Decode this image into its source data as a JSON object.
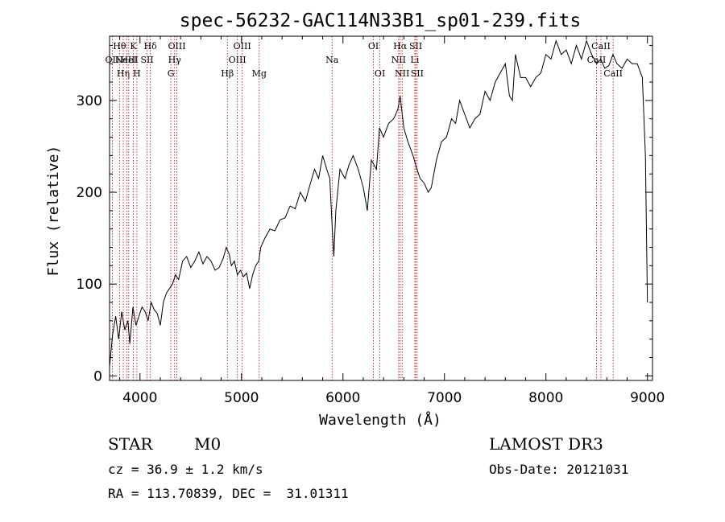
{
  "chart_data": {
    "type": "line",
    "title": "spec-56232-GAC114N33B1_sp01-239.fits",
    "xlabel": "Wavelength (Å)",
    "ylabel": "Flux (relative)",
    "xlim": [
      3700,
      9050
    ],
    "ylim": [
      -5,
      370
    ],
    "xticks": [
      4000,
      5000,
      6000,
      7000,
      8000,
      9000
    ],
    "yticks": [
      0,
      100,
      200,
      300
    ],
    "grid": false,
    "series": [
      {
        "x": [
          3700,
          3730,
          3760,
          3790,
          3820,
          3850,
          3880,
          3900,
          3930,
          3960,
          3990,
          4020,
          4050,
          4080,
          4110,
          4140,
          4170,
          4200,
          4230,
          4260,
          4290,
          4320,
          4350,
          4380,
          4420,
          4460,
          4500,
          4540,
          4580,
          4620,
          4660,
          4700,
          4740,
          4780,
          4820,
          4850,
          4880,
          4900,
          4930,
          4960,
          4990,
          5020,
          5050,
          5080,
          5110,
          5140,
          5170,
          5190,
          5230,
          5280,
          5330,
          5380,
          5430,
          5480,
          5530,
          5580,
          5630,
          5680,
          5720,
          5760,
          5800,
          5840,
          5870,
          5895,
          5910,
          5930,
          5970,
          6020,
          6060,
          6100,
          6150,
          6200,
          6240,
          6280,
          6330,
          6360,
          6400,
          6450,
          6500,
          6540,
          6563,
          6600,
          6640,
          6690,
          6730,
          6760,
          6800,
          6840,
          6870,
          6920,
          6970,
          7020,
          7070,
          7110,
          7150,
          7200,
          7250,
          7300,
          7350,
          7400,
          7450,
          7500,
          7550,
          7600,
          7640,
          7670,
          7700,
          7750,
          7800,
          7850,
          7900,
          7950,
          8000,
          8050,
          8100,
          8150,
          8200,
          8250,
          8300,
          8350,
          8400,
          8450,
          8500,
          8540,
          8580,
          8620,
          8660,
          8700,
          8750,
          8800,
          8850,
          8900,
          8950,
          8980,
          9000
        ],
        "values": [
          10,
          45,
          65,
          40,
          70,
          50,
          60,
          35,
          75,
          55,
          65,
          75,
          70,
          60,
          80,
          72,
          68,
          55,
          80,
          90,
          95,
          100,
          110,
          105,
          125,
          130,
          118,
          125,
          135,
          122,
          130,
          125,
          115,
          118,
          128,
          140,
          132,
          120,
          125,
          110,
          115,
          108,
          112,
          95,
          110,
          120,
          125,
          140,
          150,
          160,
          158,
          170,
          172,
          185,
          182,
          200,
          190,
          210,
          225,
          215,
          240,
          225,
          215,
          160,
          130,
          180,
          225,
          215,
          230,
          240,
          225,
          205,
          180,
          235,
          225,
          270,
          260,
          275,
          280,
          290,
          305,
          270,
          255,
          240,
          225,
          215,
          210,
          200,
          205,
          235,
          255,
          260,
          280,
          275,
          300,
          285,
          270,
          280,
          285,
          310,
          300,
          320,
          330,
          340,
          305,
          300,
          350,
          325,
          325,
          315,
          325,
          330,
          350,
          345,
          365,
          350,
          355,
          340,
          360,
          345,
          365,
          350,
          340,
          345,
          335,
          338,
          350,
          340,
          335,
          345,
          340,
          340,
          325,
          240,
          80
        ]
      }
    ],
    "lines": [
      {
        "x": 3727,
        "label": "OII",
        "row": 2
      },
      {
        "x": 3798,
        "label": "Hθ",
        "row": 1
      },
      {
        "x": 3835,
        "label": "Hη",
        "row": 3
      },
      {
        "x": 3869,
        "label": "NeIII",
        "row": 2
      },
      {
        "x": 3889,
        "label": "HeI",
        "row": 2
      },
      {
        "x": 3934,
        "label": "K",
        "row": 1
      },
      {
        "x": 3969,
        "label": "H",
        "row": 3
      },
      {
        "x": 4070,
        "label": "SII",
        "row": 2
      },
      {
        "x": 4102,
        "label": "Hδ",
        "row": 1
      },
      {
        "x": 4304,
        "label": "G",
        "row": 3
      },
      {
        "x": 4341,
        "label": "Hγ",
        "row": 2
      },
      {
        "x": 4363,
        "label": "OIII",
        "row": 1
      },
      {
        "x": 4861,
        "label": "Hβ",
        "row": 3
      },
      {
        "x": 4959,
        "label": "OIII",
        "row": 2
      },
      {
        "x": 5007,
        "label": "OIII",
        "row": 1
      },
      {
        "x": 5175,
        "label": "Mg",
        "row": 3
      },
      {
        "x": 5893,
        "label": "Na",
        "row": 2
      },
      {
        "x": 6300,
        "label": "OI",
        "row": 1
      },
      {
        "x": 6364,
        "label": "OI",
        "row": 3
      },
      {
        "x": 6548,
        "label": "NII",
        "row": 2
      },
      {
        "x": 6563,
        "label": "Hα",
        "row": 1
      },
      {
        "x": 6583,
        "label": "NII",
        "row": 3
      },
      {
        "x": 6708,
        "label": "Li",
        "row": 2
      },
      {
        "x": 6717,
        "label": "SII",
        "row": 1
      },
      {
        "x": 6731,
        "label": "SII",
        "row": 3
      },
      {
        "x": 8498,
        "label": "CaII",
        "row": 2
      },
      {
        "x": 8542,
        "label": "CaII",
        "row": 1
      },
      {
        "x": 8662,
        "label": "CaII",
        "row": 3
      }
    ]
  },
  "info": {
    "object_type": "STAR",
    "subclass": "M0",
    "survey": "LAMOST DR3",
    "cz": "cz = 36.9 ± 1.2 km/s",
    "obs_date": "Obs-Date: 20121031",
    "coords": "RA = 113.70839, DEC =  31.01311"
  }
}
